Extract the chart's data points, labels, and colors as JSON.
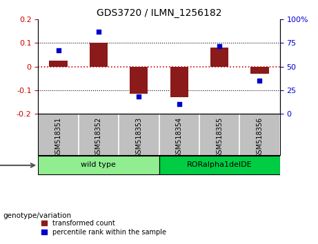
{
  "title": "GDS3720 / ILMN_1256182",
  "samples": [
    "GSM518351",
    "GSM518352",
    "GSM518353",
    "GSM518354",
    "GSM518355",
    "GSM518356"
  ],
  "bar_values": [
    0.025,
    0.102,
    -0.115,
    -0.13,
    0.08,
    -0.03
  ],
  "dot_values": [
    67,
    87,
    18,
    10,
    72,
    35
  ],
  "ylim_left": [
    -0.2,
    0.2
  ],
  "ylim_right": [
    0,
    100
  ],
  "yticks_left": [
    -0.2,
    -0.1,
    0,
    0.1,
    0.2
  ],
  "yticks_right": [
    0,
    25,
    50,
    75,
    100
  ],
  "yticks_right_labels": [
    "0",
    "25",
    "50",
    "75",
    "100%"
  ],
  "bar_color": "#8B1A1A",
  "dot_color": "#0000CD",
  "grid_color": "black",
  "zero_line_color": "#CC0000",
  "groups": [
    {
      "label": "wild type",
      "samples": [
        0,
        1,
        2
      ],
      "color": "#90EE90"
    },
    {
      "label": "RORalpha1delDE",
      "samples": [
        3,
        4,
        5
      ],
      "color": "#00CC44"
    }
  ],
  "legend_labels": [
    "transformed count",
    "percentile rank within the sample"
  ],
  "genotype_label": "genotype/variation",
  "bg_color": "#FFFFFF",
  "plot_bg_color": "#FFFFFF",
  "tick_label_area_color": "#C0C0C0"
}
